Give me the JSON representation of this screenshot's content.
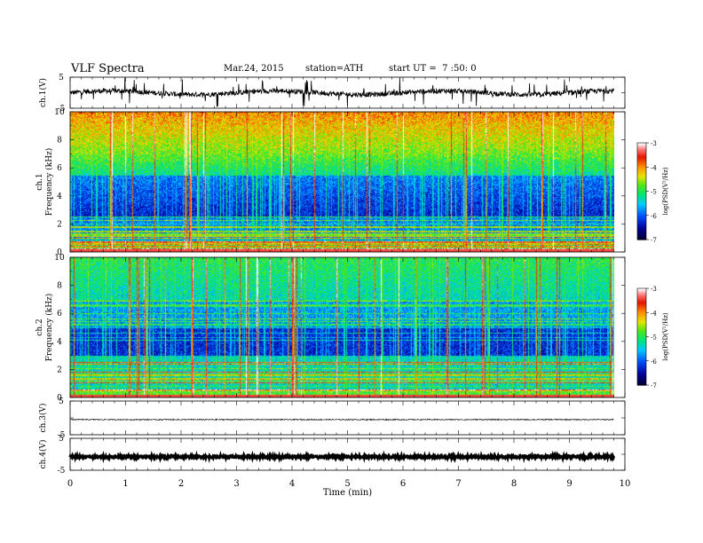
{
  "header": {
    "title": "VLF Spectra",
    "date": "Mar.24, 2015",
    "station": "station=ATH",
    "start": "start UT =  7 :50: 0"
  },
  "chart_data": [
    {
      "type": "line",
      "panel": "ch1-waveform",
      "ylabel": "ch.1(V)",
      "yticks": [
        "5",
        "-5"
      ],
      "ylim": [
        -5,
        5
      ],
      "appearance": "noisy waveform with frequent spikes"
    },
    {
      "type": "heatmap",
      "panel": "ch1-spectrogram",
      "ylabel": "ch.1 Frequency (kHz)",
      "ylim": [
        0,
        10
      ],
      "yticks": [
        "0",
        "2",
        "4",
        "6",
        "8",
        "10"
      ],
      "colorbar": {
        "label": "log(PSD(V²/Hz)",
        "ticks": [
          "-3",
          "-4",
          "-5",
          "-6",
          "-7"
        ]
      }
    },
    {
      "type": "heatmap",
      "panel": "ch2-spectrogram",
      "ylabel": "ch.2 Frequency (kHz)",
      "ylim": [
        0,
        10
      ],
      "yticks": [
        "0",
        "2",
        "4",
        "6",
        "8",
        "10"
      ],
      "colorbar": {
        "label": "log(PSD(V²/Hz)",
        "ticks": [
          "-3",
          "-4",
          "-5",
          "-6",
          "-7"
        ]
      }
    },
    {
      "type": "line",
      "panel": "ch3-waveform",
      "ylabel": "ch.3(V)",
      "yticks": [
        "5",
        "-5"
      ],
      "ylim": [
        -5,
        5
      ],
      "appearance": "near-flat trace slightly below zero"
    },
    {
      "type": "line",
      "panel": "ch4-waveform",
      "ylabel": "ch.4(V)",
      "yticks": [
        "5",
        "-5"
      ],
      "ylim": [
        -5,
        5
      ],
      "appearance": "thick flat band near zero"
    }
  ],
  "x_axis": {
    "label": "Time  (min)",
    "ticks": [
      "0",
      "1",
      "2",
      "3",
      "4",
      "5",
      "6",
      "7",
      "8",
      "9",
      "10"
    ],
    "xlim": [
      0,
      10
    ],
    "data_end": 9.8
  }
}
